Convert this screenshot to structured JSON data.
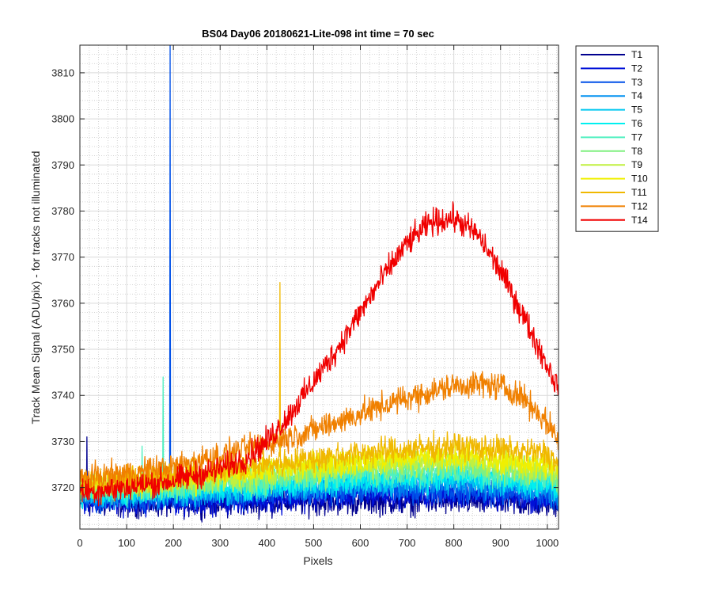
{
  "chart_data": {
    "type": "line",
    "title": "BS04 Day06 20180621-Lite-098 int time = 70 sec",
    "xlabel": "Pixels",
    "ylabel": "Track Mean Signal (ADU/pix) - for tracks not illuminated",
    "xlim": [
      0,
      1024
    ],
    "ylim": [
      3711,
      3816
    ],
    "x_ticks": [
      0,
      100,
      200,
      300,
      400,
      500,
      600,
      700,
      800,
      900,
      1000
    ],
    "y_ticks": [
      3720,
      3730,
      3740,
      3750,
      3760,
      3770,
      3780,
      3790,
      3800,
      3810
    ],
    "grid": "major and minor",
    "legend_position": "outside-right",
    "noise_amplitude": 2.2,
    "series": [
      {
        "name": "T1",
        "color": "#00008F",
        "x": [
          0,
          200,
          400,
          600,
          800,
          1000,
          1024
        ],
        "y": [
          3716.5,
          3716.5,
          3716.8,
          3717.0,
          3717.0,
          3716.5,
          3716.5
        ],
        "spikes": [
          {
            "x": 15,
            "y": 3731
          }
        ]
      },
      {
        "name": "T2",
        "color": "#0010D8",
        "x": [
          0,
          200,
          400,
          600,
          800,
          1000,
          1024
        ],
        "y": [
          3717.0,
          3717.0,
          3717.5,
          3718.5,
          3718.5,
          3717.5,
          3717.0
        ]
      },
      {
        "name": "T3",
        "color": "#0050E8",
        "x": [
          0,
          200,
          400,
          600,
          800,
          1000,
          1024
        ],
        "y": [
          3717.5,
          3718.0,
          3718.5,
          3719.5,
          3719.5,
          3718.5,
          3718.0
        ],
        "spikes": [
          {
            "x": 193,
            "y": 3816
          }
        ]
      },
      {
        "name": "T4",
        "color": "#0090F0",
        "x": [
          0,
          200,
          400,
          600,
          800,
          1000,
          1024
        ],
        "y": [
          3718.0,
          3718.5,
          3719.5,
          3720.5,
          3721.0,
          3719.5,
          3719.0
        ]
      },
      {
        "name": "T5",
        "color": "#00C8F0",
        "x": [
          0,
          200,
          400,
          600,
          800,
          1000,
          1024
        ],
        "y": [
          3718.5,
          3719.0,
          3720.0,
          3721.5,
          3722.0,
          3720.5,
          3720.0
        ]
      },
      {
        "name": "T6",
        "color": "#00F0F0",
        "x": [
          0,
          200,
          400,
          600,
          800,
          1000,
          1024
        ],
        "y": [
          3719.0,
          3719.5,
          3720.5,
          3722.0,
          3722.5,
          3721.0,
          3720.5
        ]
      },
      {
        "name": "T7",
        "color": "#50F0C0",
        "x": [
          0,
          200,
          400,
          600,
          800,
          1000,
          1024
        ],
        "y": [
          3719.5,
          3720.0,
          3721.5,
          3723.0,
          3723.5,
          3722.0,
          3721.0
        ],
        "spikes": [
          {
            "x": 178,
            "y": 3744
          },
          {
            "x": 133,
            "y": 3729
          }
        ]
      },
      {
        "name": "T8",
        "color": "#80F080",
        "x": [
          0,
          200,
          400,
          600,
          800,
          1000,
          1024
        ],
        "y": [
          3720.0,
          3720.5,
          3722.0,
          3724.0,
          3725.0,
          3723.0,
          3722.0
        ]
      },
      {
        "name": "T9",
        "color": "#C0F040",
        "x": [
          0,
          200,
          400,
          600,
          800,
          1000,
          1024
        ],
        "y": [
          3720.5,
          3721.0,
          3723.0,
          3725.0,
          3726.0,
          3724.0,
          3723.0
        ]
      },
      {
        "name": "T10",
        "color": "#F0F000",
        "x": [
          0,
          200,
          400,
          600,
          800,
          1000,
          1024
        ],
        "y": [
          3721.0,
          3721.5,
          3724.0,
          3726.0,
          3727.0,
          3725.0,
          3724.0
        ]
      },
      {
        "name": "T11",
        "color": "#F0B800",
        "x": [
          0,
          200,
          400,
          600,
          800,
          1000,
          1024
        ],
        "y": [
          3721.5,
          3722.5,
          3725.0,
          3727.5,
          3729.0,
          3727.5,
          3725.0
        ],
        "spikes": [
          {
            "x": 428,
            "y": 3764.5
          }
        ]
      },
      {
        "name": "T12",
        "color": "#F08000",
        "x": [
          0,
          100,
          200,
          300,
          400,
          500,
          600,
          700,
          800,
          850,
          900,
          950,
          1000,
          1024
        ],
        "y": [
          3722.0,
          3723.0,
          3724.5,
          3727.0,
          3729.5,
          3732.5,
          3736.0,
          3739.5,
          3742.0,
          3742.5,
          3742.0,
          3739.5,
          3734.0,
          3730.5
        ]
      },
      {
        "name": "T14",
        "color": "#F00000",
        "x": [
          0,
          100,
          200,
          300,
          350,
          400,
          450,
          500,
          550,
          600,
          650,
          700,
          750,
          800,
          850,
          900,
          950,
          1000,
          1024
        ],
        "y": [
          3719.0,
          3720.0,
          3721.5,
          3724.0,
          3726.0,
          3730.0,
          3736.0,
          3743.0,
          3750.0,
          3758.0,
          3766.0,
          3773.0,
          3777.5,
          3778.5,
          3775.0,
          3767.0,
          3757.0,
          3746.5,
          3741.5
        ]
      }
    ]
  }
}
